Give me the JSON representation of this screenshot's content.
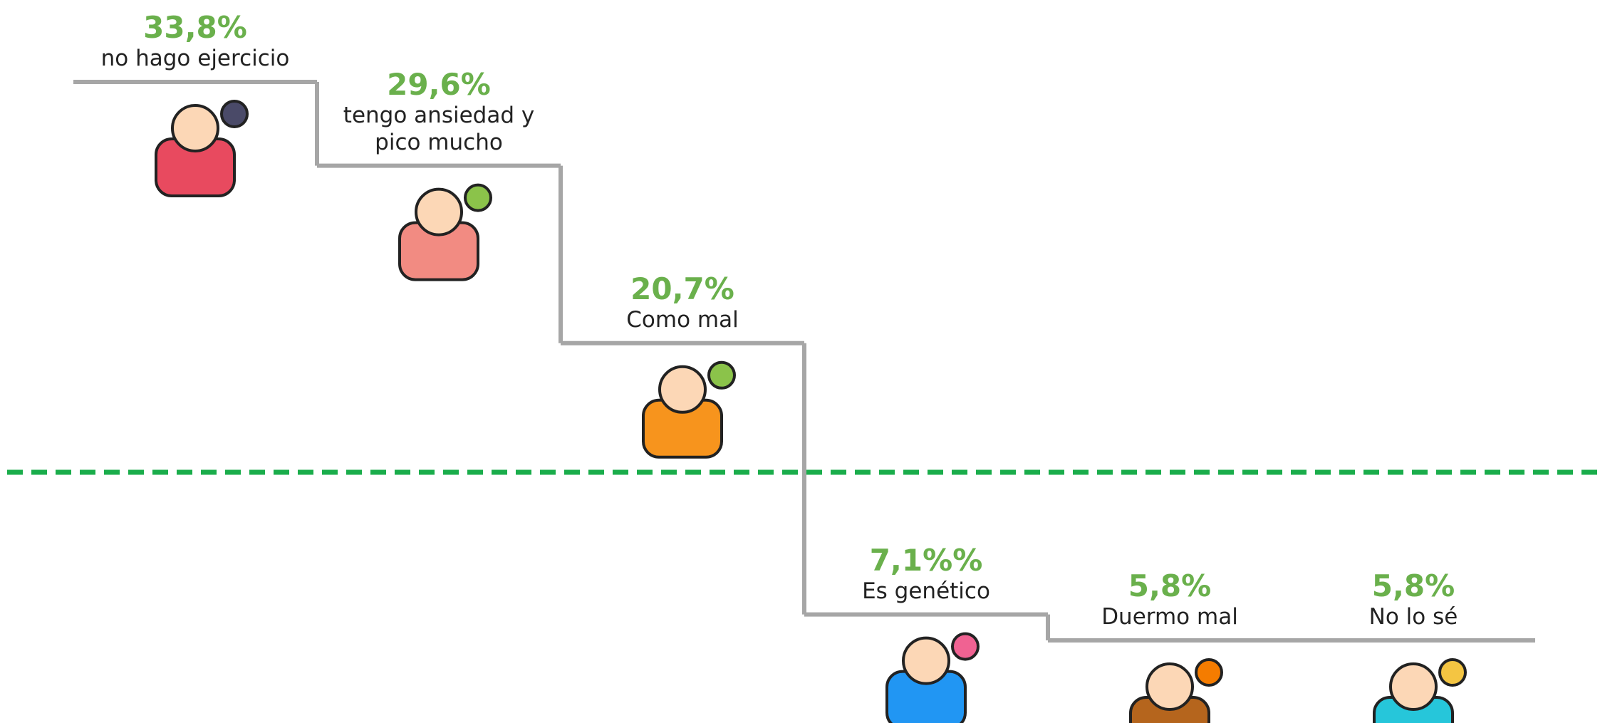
{
  "chart_data": {
    "type": "step",
    "categories": [
      "no hago ejercicio",
      "tengo ansiedad y pico mucho",
      "Como mal",
      "Es genético",
      "Duermo mal",
      "No lo sé"
    ],
    "values": [
      33.8,
      29.6,
      20.7,
      7.1,
      5.8,
      5.8
    ],
    "value_labels": [
      "33,8%",
      "29,6%",
      "20,7%",
      "7,1%%",
      "5,8%",
      "5,8%"
    ],
    "color": "#a6a6a6",
    "label_color": "#6ab04c"
  }
}
